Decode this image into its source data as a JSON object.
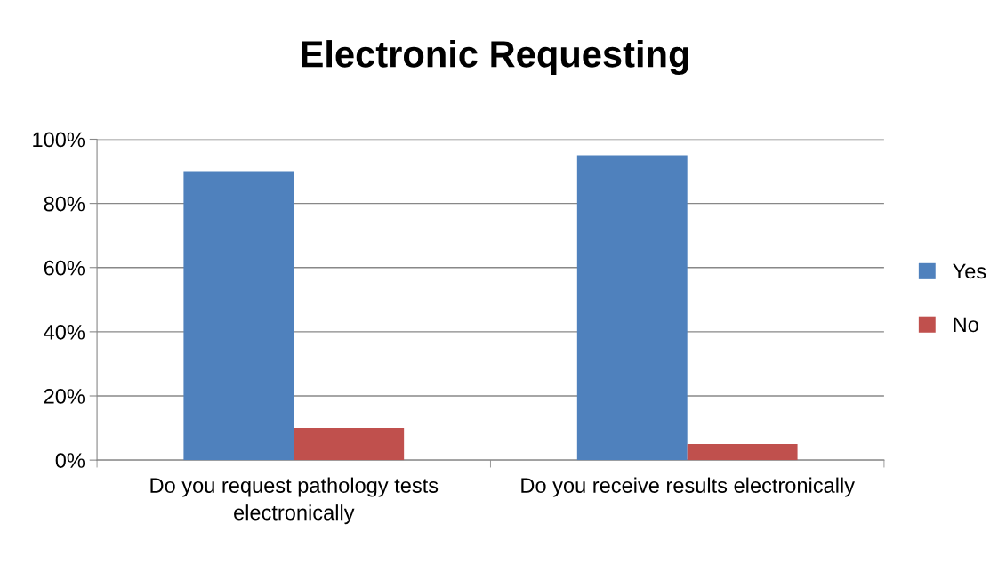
{
  "chart_data": {
    "type": "bar",
    "title": "Electronic Requesting",
    "categories": [
      "Do you request pathology tests\nelectronically",
      "Do you receive results electronically"
    ],
    "series": [
      {
        "name": "Yes",
        "color": "#4f81bd",
        "values": [
          90,
          95
        ]
      },
      {
        "name": "No",
        "color": "#c0504d",
        "values": [
          10,
          5
        ]
      }
    ],
    "ylim": [
      0,
      100
    ],
    "yticks": [
      {
        "value": 0,
        "label": "0%"
      },
      {
        "value": 20,
        "label": "20%"
      },
      {
        "value": 40,
        "label": "40%"
      },
      {
        "value": 60,
        "label": "60%"
      },
      {
        "value": 80,
        "label": "80%"
      },
      {
        "value": 100,
        "label": "100%"
      }
    ],
    "grid": "y",
    "legend": "right"
  }
}
